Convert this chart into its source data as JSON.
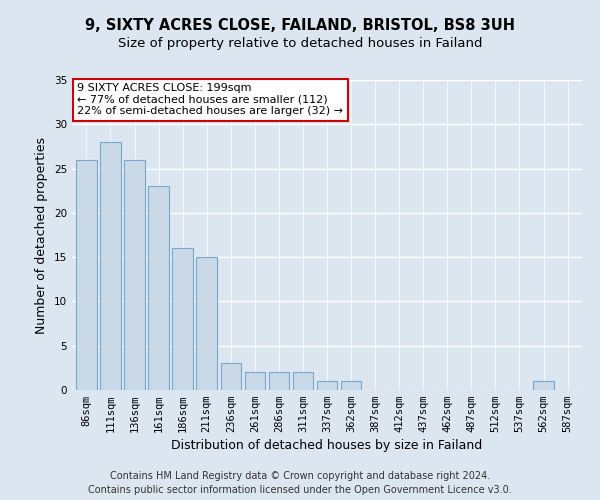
{
  "title": "9, SIXTY ACRES CLOSE, FAILAND, BRISTOL, BS8 3UH",
  "subtitle": "Size of property relative to detached houses in Failand",
  "xlabel": "Distribution of detached houses by size in Failand",
  "ylabel": "Number of detached properties",
  "categories": [
    "86sqm",
    "111sqm",
    "136sqm",
    "161sqm",
    "186sqm",
    "211sqm",
    "236sqm",
    "261sqm",
    "286sqm",
    "311sqm",
    "337sqm",
    "362sqm",
    "387sqm",
    "412sqm",
    "437sqm",
    "462sqm",
    "487sqm",
    "512sqm",
    "537sqm",
    "562sqm",
    "587sqm"
  ],
  "values": [
    26,
    28,
    26,
    23,
    16,
    15,
    3,
    2,
    2,
    2,
    1,
    1,
    0,
    0,
    0,
    0,
    0,
    0,
    0,
    1,
    0
  ],
  "bar_color": "#c9d9e8",
  "bar_edge_color": "#7aa8c8",
  "annotation_text": "9 SIXTY ACRES CLOSE: 199sqm\n← 77% of detached houses are smaller (112)\n22% of semi-detached houses are larger (32) →",
  "annotation_box_color": "#ffffff",
  "annotation_box_edge_color": "#cc0000",
  "ylim": [
    0,
    35
  ],
  "yticks": [
    0,
    5,
    10,
    15,
    20,
    25,
    30,
    35
  ],
  "background_color": "#dce6f0",
  "plot_bg_color": "#dce6f0",
  "grid_color": "#ffffff",
  "footer": "Contains HM Land Registry data © Crown copyright and database right 2024.\nContains public sector information licensed under the Open Government Licence v3.0.",
  "title_fontsize": 10.5,
  "subtitle_fontsize": 9.5,
  "axis_label_fontsize": 9,
  "tick_fontsize": 7.5,
  "annotation_fontsize": 8,
  "footer_fontsize": 7
}
